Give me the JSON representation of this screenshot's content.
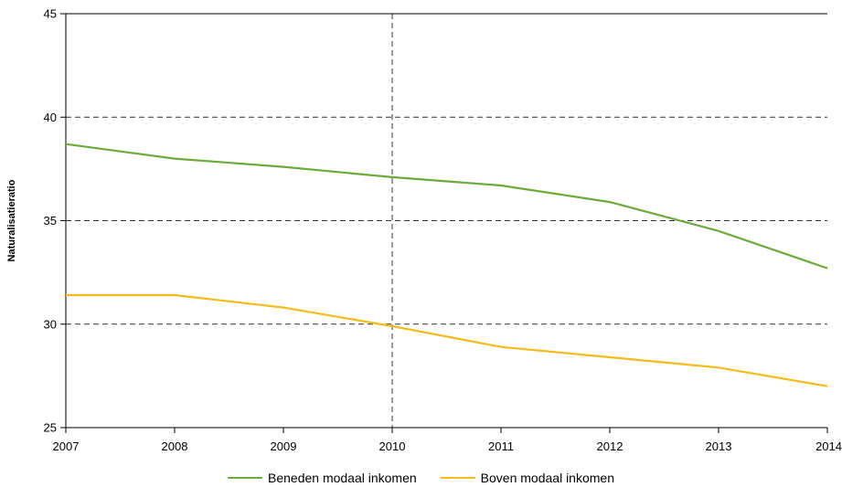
{
  "chart_data": {
    "type": "line",
    "title": "",
    "xlabel": "",
    "ylabel": "Naturalisatieratio",
    "x": [
      "2007",
      "2008",
      "2009",
      "2010",
      "2011",
      "2012",
      "2013",
      "2014"
    ],
    "ylim": [
      25,
      45
    ],
    "yticks": [
      "25",
      "30",
      "35",
      "40",
      "45"
    ],
    "grid": "horizontal dashed, plus vertical dashed line at 2010",
    "legend_position": "bottom",
    "series": [
      {
        "name": "Beneden modaal inkomen",
        "color": "#6aab3a",
        "values": [
          38.7,
          38.0,
          37.6,
          37.1,
          36.7,
          35.9,
          34.5,
          32.7
        ]
      },
      {
        "name": "Boven modaal inkomen",
        "color": "#f5bb1a",
        "values": [
          31.4,
          31.4,
          30.8,
          29.9,
          28.9,
          28.4,
          27.9,
          27.0
        ]
      }
    ]
  }
}
